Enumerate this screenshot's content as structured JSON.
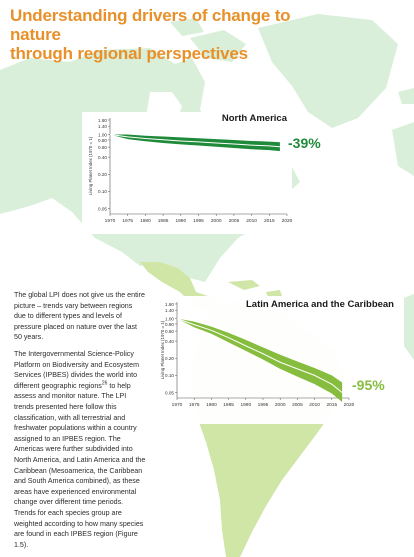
{
  "title_lines": [
    "Understanding drivers of change to nature",
    "through regional perspectives"
  ],
  "paragraph_1": "The global LPI does not give us the entire picture – trends vary between regions due to different types and levels of pressure placed on nature over the last 50 years.",
  "paragraph_2_before_sup": "The Intergovernmental Science-Policy Platform on Biodiversity and Ecosystem Services (IPBES) divides the world into different geographic regions",
  "paragraph_2_sup": "26",
  "paragraph_2_after_sup": " to help assess and monitor nature. The LPI trends presented here follow this classification, with all terrestrial and freshwater populations within a country assigned to an IPBES region. The Americas were further subdivided into North America, and Latin America and the Caribbean (Mesoamerica, the Caribbean and South America combined), as these areas have experienced environmental change over different time periods. Trends for each species group are weighted according to how many species are found in each IPBES region (Figure 1.5).",
  "colors": {
    "title": "#e8912b",
    "north_america_line": "#1f8b3a",
    "latin_america_line": "#86bd3e",
    "map_land": "#d9efd9",
    "map_land_south": "#cfe6a7"
  },
  "chart_data": [
    {
      "type": "area",
      "title": "North America",
      "change_label": "-39%",
      "ylabel": "Living Planet Index (1970 = 1)",
      "y_ticks": [
        "1.80",
        "1.40",
        "1.00",
        "0.80",
        "0.60",
        "0.40",
        "0.20",
        "0.10",
        "0.05"
      ],
      "x_ticks": [
        "1970",
        "1975",
        "1980",
        "1985",
        "1990",
        "1995",
        "2000",
        "2005",
        "2010",
        "2015",
        "2020"
      ],
      "x": [
        1970,
        1975,
        1980,
        1985,
        1990,
        1995,
        2000,
        2005,
        2010,
        2015,
        2018
      ],
      "index": [
        1.0,
        0.91,
        0.85,
        0.81,
        0.77,
        0.74,
        0.71,
        0.68,
        0.65,
        0.63,
        0.61
      ],
      "lower": [
        1.0,
        0.83,
        0.76,
        0.71,
        0.67,
        0.64,
        0.61,
        0.58,
        0.55,
        0.53,
        0.51
      ],
      "upper": [
        1.0,
        1.0,
        0.95,
        0.92,
        0.89,
        0.86,
        0.83,
        0.8,
        0.77,
        0.75,
        0.73
      ]
    },
    {
      "type": "area",
      "title": "Latin America and the Caribbean",
      "change_label": "-95%",
      "ylabel": "Living Planet Index (1970 = 1)",
      "y_ticks": [
        "1.80",
        "1.40",
        "1.00",
        "0.80",
        "0.60",
        "0.40",
        "0.20",
        "0.10",
        "0.05"
      ],
      "x_ticks": [
        "1970",
        "1975",
        "1980",
        "1985",
        "1990",
        "1995",
        "2000",
        "2005",
        "2010",
        "2015",
        "2020"
      ],
      "x": [
        1970,
        1975,
        1980,
        1985,
        1990,
        1995,
        2000,
        2005,
        2010,
        2015,
        2018
      ],
      "index": [
        1.0,
        0.78,
        0.62,
        0.46,
        0.33,
        0.24,
        0.17,
        0.13,
        0.1,
        0.07,
        0.05
      ],
      "lower": [
        1.0,
        0.7,
        0.54,
        0.38,
        0.27,
        0.19,
        0.13,
        0.095,
        0.07,
        0.048,
        0.034
      ],
      "upper": [
        1.0,
        0.88,
        0.72,
        0.56,
        0.42,
        0.31,
        0.23,
        0.175,
        0.135,
        0.1,
        0.075
      ]
    }
  ]
}
